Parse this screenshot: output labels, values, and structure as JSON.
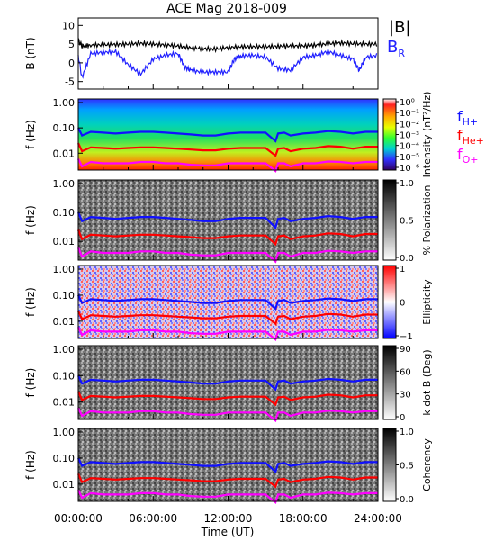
{
  "title": "ACE Mag 2018-009",
  "colors": {
    "B_total": "#000000",
    "B_R": "#2020ff",
    "f_H": "#1010ff",
    "f_He": "#ff0000",
    "f_O": "#ff00ff",
    "spec_background": "#1a8a8a"
  },
  "chart_data": [
    {
      "type": "line",
      "ylabel": "B (nT)",
      "ylim": [
        -7,
        12
      ],
      "yticks": [
        "10",
        "5",
        "0",
        "-5"
      ],
      "xlim": [
        0,
        24
      ],
      "series": [
        {
          "name": "|B|",
          "x": [
            0,
            0.3,
            1,
            2,
            3,
            4,
            5,
            6,
            7,
            8,
            9,
            10,
            11,
            12,
            13,
            14,
            15,
            16,
            17,
            18,
            19,
            20,
            21,
            22,
            23,
            24
          ],
          "values": [
            6,
            4.5,
            4.7,
            4.8,
            4.9,
            5.0,
            5.2,
            5.0,
            4.8,
            4.5,
            4.0,
            3.8,
            3.7,
            4.1,
            4.3,
            4.3,
            4.3,
            4.4,
            4.5,
            4.5,
            4.7,
            5.1,
            5.3,
            5.1,
            5.0,
            5.0
          ]
        },
        {
          "name": "BR",
          "x": [
            0,
            0.3,
            1,
            2,
            3,
            4,
            5,
            6,
            7,
            8,
            8.5,
            9,
            10,
            11,
            12,
            12.5,
            13,
            14,
            15,
            16,
            17,
            18,
            19,
            20,
            21,
            22,
            22.5,
            23,
            24
          ],
          "values": [
            2,
            -4,
            2.5,
            2.8,
            3.0,
            -0.5,
            -3,
            1,
            2,
            2.5,
            -1,
            -2,
            -2.5,
            -2.5,
            -2.5,
            1,
            1.8,
            2,
            1.5,
            -1.5,
            -2,
            1.5,
            2,
            3,
            2,
            1,
            -2,
            1.5,
            2
          ]
        }
      ]
    },
    {
      "type": "heatmap",
      "ylabel": "f (Hz)",
      "yticks": [
        "1.00",
        "0.10",
        "0.01"
      ],
      "colorbar": {
        "label": "Intensity (nT²/Hz)",
        "ticks": [
          "10⁰",
          "10⁻¹",
          "10⁻²",
          "10⁻³",
          "10⁻⁴",
          "10⁻⁵",
          "10⁻⁶"
        ]
      }
    },
    {
      "type": "heatmap",
      "ylabel": "f (Hz)",
      "yticks": [
        "1.00",
        "0.10",
        "0.01"
      ],
      "colorbar": {
        "label": "% Polarization",
        "ticks": [
          "1.0",
          "0.5",
          "0.0"
        ]
      }
    },
    {
      "type": "heatmap",
      "ylabel": "f (Hz)",
      "yticks": [
        "1.00",
        "0.10",
        "0.01"
      ],
      "colorbar": {
        "label": "Ellipticity",
        "ticks": [
          "1",
          "0",
          "−1"
        ]
      }
    },
    {
      "type": "heatmap",
      "ylabel": "f (Hz)",
      "yticks": [
        "1.00",
        "0.10",
        "0.01"
      ],
      "colorbar": {
        "label": "k dot B (Deg)",
        "ticks": [
          "90",
          "60",
          "30",
          "0"
        ]
      }
    },
    {
      "type": "heatmap",
      "ylabel": "f (Hz)",
      "yticks": [
        "1.00",
        "0.10",
        "0.01"
      ],
      "colorbar": {
        "label": "Coherency",
        "ticks": [
          "1.0",
          "0.5",
          "0.0"
        ]
      }
    }
  ],
  "gyro_lines": {
    "x": [
      0,
      0.3,
      1,
      2,
      3,
      4,
      5,
      6,
      7,
      8,
      9,
      10,
      11,
      12,
      13,
      14,
      15,
      15.8,
      16,
      16.5,
      17,
      18,
      19,
      20,
      21,
      22,
      23,
      24
    ],
    "f_H": [
      0.1,
      0.05,
      0.07,
      0.065,
      0.06,
      0.065,
      0.07,
      0.07,
      0.065,
      0.06,
      0.055,
      0.05,
      0.05,
      0.06,
      0.065,
      0.065,
      0.065,
      0.03,
      0.06,
      0.065,
      0.05,
      0.06,
      0.065,
      0.075,
      0.07,
      0.06,
      0.07,
      0.07
    ],
    "f_He": [
      0.025,
      0.012,
      0.017,
      0.016,
      0.015,
      0.016,
      0.017,
      0.017,
      0.016,
      0.015,
      0.014,
      0.013,
      0.013,
      0.015,
      0.016,
      0.016,
      0.016,
      0.008,
      0.015,
      0.016,
      0.012,
      0.015,
      0.016,
      0.019,
      0.018,
      0.015,
      0.018,
      0.018
    ],
    "f_O": [
      0.006,
      0.003,
      0.0045,
      0.004,
      0.004,
      0.004,
      0.0045,
      0.0045,
      0.004,
      0.004,
      0.0035,
      0.0033,
      0.0033,
      0.004,
      0.004,
      0.004,
      0.004,
      0.002,
      0.004,
      0.004,
      0.003,
      0.004,
      0.004,
      0.0047,
      0.0045,
      0.004,
      0.0045,
      0.0045
    ]
  },
  "legend": {
    "top_line1": "|B|",
    "top_line2": "B",
    "top_line2_sub": "R",
    "f_H": "f",
    "f_H_sub": "H+",
    "f_He": "f",
    "f_He_sub": "He+",
    "f_O": "f",
    "f_O_sub": "O+"
  },
  "x_axis": {
    "ticks": [
      "00:00:00",
      "06:00:00",
      "12:00:00",
      "18:00:00",
      "24:00:00"
    ],
    "label": "Time (UT)"
  }
}
